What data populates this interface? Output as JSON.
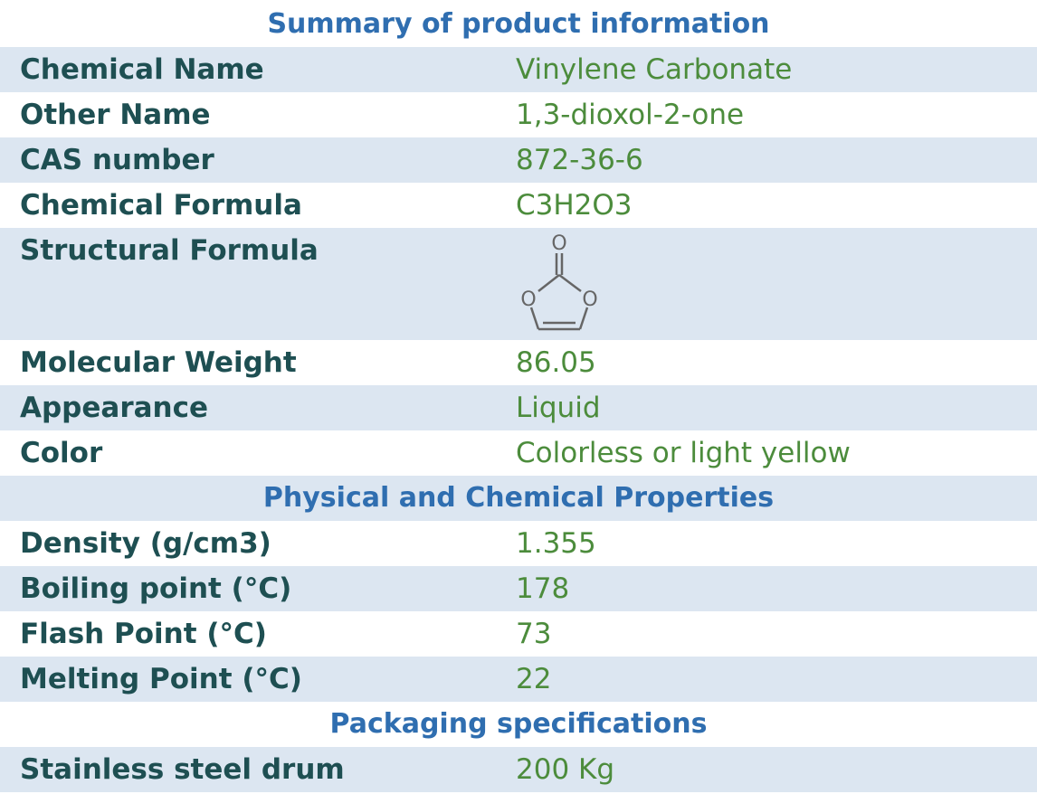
{
  "sections": [
    {
      "title": "Summary of product information",
      "rows": [
        {
          "label": "Chemical Name",
          "value": "Vinylene Carbonate"
        },
        {
          "label": "Other Name",
          "value": "1,3-dioxol-2-one"
        },
        {
          "label": "CAS number",
          "value": "872-36-6"
        },
        {
          "label": "Chemical Formula",
          "value": "C3H2O3"
        },
        {
          "label": "Structural Formula"
        },
        {
          "label": "Molecular Weight",
          "value": "86.05"
        },
        {
          "label": "Appearance",
          "value": "Liquid"
        },
        {
          "label": "Color",
          "value": "Colorless or light yellow"
        }
      ]
    },
    {
      "title": "Physical and Chemical Properties",
      "rows": [
        {
          "label": "Density (g/cm3)",
          "value": "1.355"
        },
        {
          "label": "Boiling point (°C)",
          "value": "178"
        },
        {
          "label": "Flash Point (°C)",
          "value": "73"
        },
        {
          "label": "Melting Point (°C)",
          "value": "22"
        }
      ]
    },
    {
      "title": "Packaging specifications",
      "rows": [
        {
          "label": "Stainless steel drum",
          "value": "200 Kg"
        }
      ]
    }
  ]
}
